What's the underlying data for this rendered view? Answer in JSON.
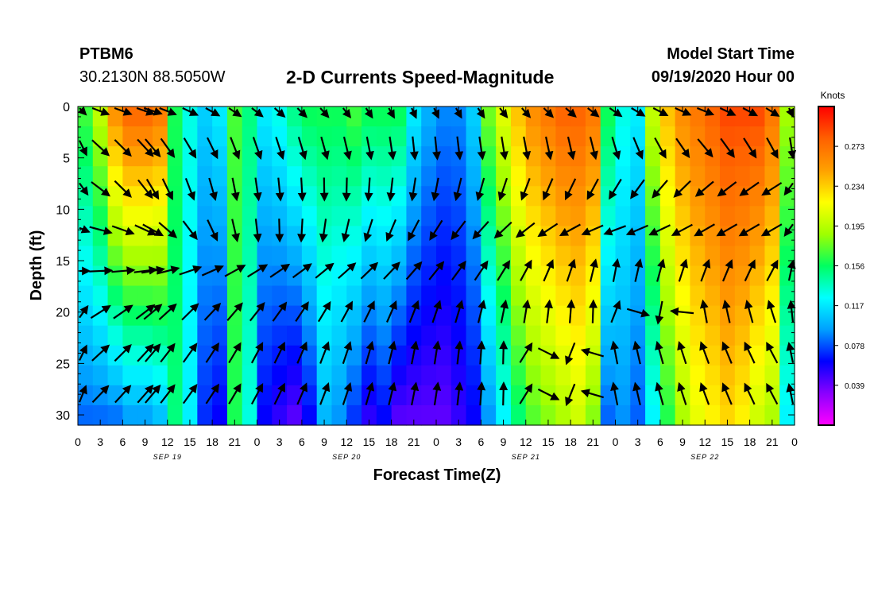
{
  "header": {
    "station": "PTBM6",
    "coordinates": "30.2130N 88.5050W",
    "title": "2-D Currents Speed-Magnitude",
    "model_start_label": "Model Start Time",
    "model_start_value": "09/19/2020 Hour 00"
  },
  "chart_data": {
    "type": "heatmap",
    "title": "2-D Currents Speed-Magnitude",
    "xlabel": "Forecast Time(Z)",
    "ylabel": "Depth (ft)",
    "x_range_hours": [
      0,
      96
    ],
    "y_range": [
      0,
      31
    ],
    "y_inverted": true,
    "x_tick_labels": [
      "0",
      "3",
      "6",
      "9",
      "12",
      "15",
      "18",
      "21",
      "0",
      "3",
      "6",
      "9",
      "12",
      "15",
      "18",
      "21",
      "0",
      "3",
      "6",
      "9",
      "12",
      "15",
      "18",
      "21",
      "0",
      "3",
      "6",
      "9",
      "12",
      "15",
      "18",
      "21",
      "0"
    ],
    "y_ticks": [
      0,
      5,
      10,
      15,
      20,
      25,
      30
    ],
    "date_labels": [
      {
        "label": "SEP 19",
        "hour": 12
      },
      {
        "label": "SEP 20",
        "hour": 36
      },
      {
        "label": "SEP 21",
        "hour": 60
      },
      {
        "label": "SEP 22",
        "hour": 84
      }
    ],
    "colorbar": {
      "units": "Knots",
      "min": 0.0,
      "max": 0.312,
      "tick_labels": [
        "0.273",
        "0.234",
        "0.195",
        "0.156",
        "0.117",
        "0.078",
        "0.039"
      ],
      "tick_values": [
        0.273,
        0.234,
        0.195,
        0.156,
        0.117,
        0.078,
        0.039
      ],
      "colors": [
        "#ff00ff",
        "#8a00ff",
        "#0000ff",
        "#00a0ff",
        "#00ffff",
        "#00ff60",
        "#a0ff00",
        "#ffff00",
        "#ffa000",
        "#ff6000",
        "#ff0000"
      ]
    },
    "speed_profile": {
      "hours": [
        0,
        2,
        4,
        6,
        8,
        10,
        12,
        14,
        16,
        18,
        20,
        22,
        24,
        26,
        28,
        30,
        32,
        34,
        36,
        38,
        40,
        42,
        44,
        46,
        48,
        50,
        52,
        54,
        56,
        58,
        60,
        62,
        64,
        66,
        68,
        70,
        72,
        74,
        76,
        78,
        80,
        82,
        84,
        86,
        88,
        90,
        92,
        94,
        96
      ],
      "surface": [
        0.17,
        0.2,
        0.26,
        0.28,
        0.28,
        0.27,
        0.16,
        0.13,
        0.11,
        0.12,
        0.17,
        0.15,
        0.12,
        0.13,
        0.15,
        0.16,
        0.16,
        0.16,
        0.17,
        0.16,
        0.16,
        0.16,
        0.12,
        0.1,
        0.09,
        0.09,
        0.11,
        0.18,
        0.21,
        0.24,
        0.26,
        0.27,
        0.28,
        0.28,
        0.27,
        0.16,
        0.13,
        0.12,
        0.2,
        0.24,
        0.26,
        0.27,
        0.28,
        0.29,
        0.29,
        0.29,
        0.27,
        0.19,
        0.17
      ],
      "bottom": [
        0.08,
        0.08,
        0.08,
        0.09,
        0.09,
        0.1,
        0.15,
        0.12,
        0.07,
        0.06,
        0.16,
        0.13,
        0.06,
        0.05,
        0.04,
        0.06,
        0.1,
        0.09,
        0.07,
        0.05,
        0.06,
        0.04,
        0.04,
        0.04,
        0.04,
        0.05,
        0.06,
        0.09,
        0.12,
        0.15,
        0.17,
        0.18,
        0.19,
        0.2,
        0.18,
        0.08,
        0.09,
        0.08,
        0.12,
        0.16,
        0.19,
        0.21,
        0.22,
        0.23,
        0.22,
        0.2,
        0.19,
        0.12,
        0.1
      ]
    },
    "vector_columns_hours": [
      0,
      3,
      6,
      9,
      10,
      12,
      15,
      18,
      21,
      24,
      27,
      30,
      33,
      36,
      39,
      42,
      45,
      48,
      51,
      54,
      57,
      60,
      63,
      66,
      69,
      72,
      75,
      78,
      81,
      84,
      87,
      90,
      93,
      96
    ],
    "vector_rows_depth_ft": [
      0,
      4,
      8,
      12,
      16,
      20,
      24,
      28
    ],
    "vector_directions_deg": [
      [
        135,
        130,
        150,
        160,
        170,
        160,
        150,
        135,
        150
      ],
      [
        130,
        140,
        160,
        165,
        175,
        170,
        165,
        140,
        155
      ],
      [
        120,
        150,
        170,
        180,
        190,
        200,
        210,
        230,
        240
      ],
      [
        100,
        120,
        170,
        190,
        210,
        230,
        250,
        240,
        240
      ],
      [
        90,
        80,
        60,
        50,
        40,
        30,
        10,
        20,
        30
      ],
      [
        60,
        50,
        40,
        30,
        20,
        10,
        0,
        350,
        340
      ],
      [
        50,
        40,
        30,
        20,
        10,
        0,
        350,
        340,
        330
      ],
      [
        45,
        40,
        30,
        20,
        10,
        0,
        350,
        340,
        330
      ]
    ]
  }
}
